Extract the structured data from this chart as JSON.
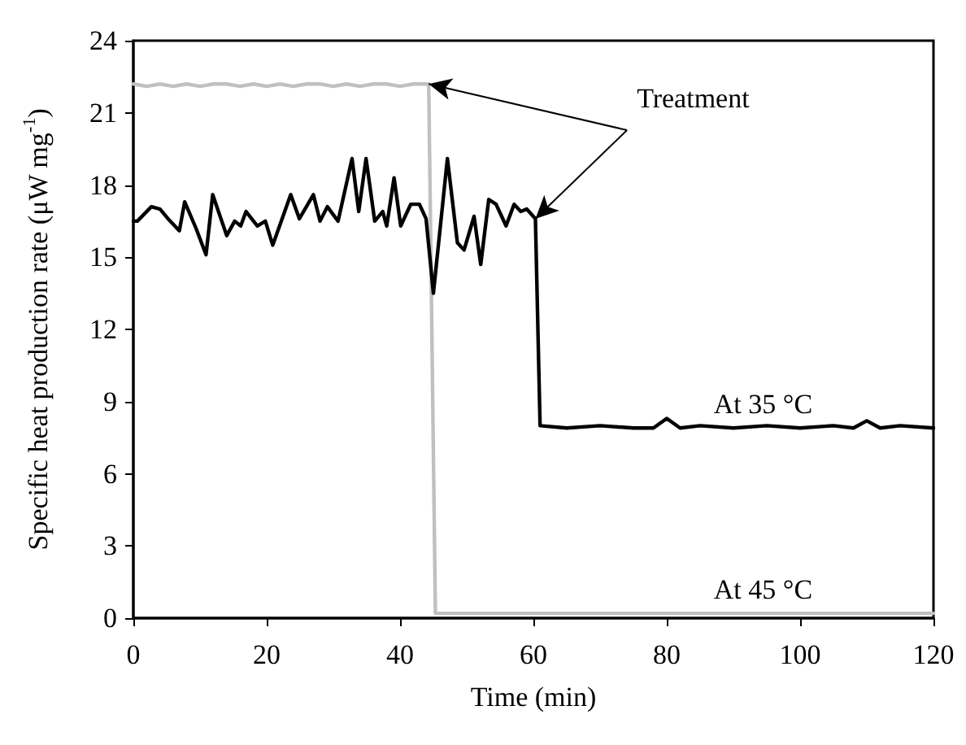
{
  "chart_data": {
    "type": "line",
    "xlabel": "Time (min)",
    "ylabel": "Specific heat production rate (μW mg$^{-1}$)",
    "xlim": [
      0,
      120
    ],
    "xticks": [
      0,
      20,
      40,
      60,
      80,
      100,
      120
    ],
    "ylim": [
      0,
      24
    ],
    "yticks": [
      0,
      3,
      6,
      9,
      12,
      15,
      18,
      21,
      24
    ],
    "grid": false,
    "marker": "none",
    "line_style": "solid",
    "series": [
      {
        "name": "At 45 °C",
        "color": "#c0c0c0",
        "x": [
          0,
          2,
          4,
          6,
          8,
          10,
          12,
          14,
          16,
          18,
          20,
          22,
          24,
          26,
          28,
          30,
          32,
          34,
          36,
          38,
          40,
          42,
          44.3,
          45.3,
          50,
          60,
          80,
          100,
          120
        ],
        "values": [
          22.2,
          22.1,
          22.2,
          22.1,
          22.2,
          22.1,
          22.2,
          22.2,
          22.1,
          22.2,
          22.1,
          22.2,
          22.1,
          22.2,
          22.2,
          22.1,
          22.2,
          22.1,
          22.2,
          22.2,
          22.1,
          22.2,
          22.2,
          0.2,
          0.2,
          0.2,
          0.2,
          0.2,
          0.2
        ]
      },
      {
        "name": "At 35 °C",
        "color": "#000000",
        "x": [
          0,
          0.6,
          2.7,
          4,
          5.2,
          6.9,
          7.7,
          9.4,
          10.9,
          11.9,
          14,
          15.2,
          16.1,
          16.9,
          18.6,
          19.8,
          20.9,
          23.6,
          24.9,
          27,
          28,
          29.1,
          30.7,
          32.8,
          33.8,
          34.9,
          36.2,
          37.4,
          38,
          39.1,
          40.1,
          41.6,
          42.9,
          43.9,
          45,
          47.1,
          48.6,
          49.6,
          51.1,
          52.1,
          53.3,
          54.4,
          55.9,
          57.1,
          58.1,
          59,
          60.3,
          61,
          65,
          70,
          75,
          78,
          80,
          82,
          85,
          90,
          95,
          100,
          105,
          108,
          110,
          112,
          115,
          120
        ],
        "values": [
          16.5,
          16.5,
          17.1,
          17,
          16.6,
          16.1,
          17.3,
          16.2,
          15.1,
          17.6,
          15.9,
          16.5,
          16.3,
          16.9,
          16.3,
          16.5,
          15.5,
          17.6,
          16.6,
          17.6,
          16.5,
          17.1,
          16.5,
          19.1,
          16.9,
          19.1,
          16.5,
          16.9,
          16.3,
          18.3,
          16.3,
          17.2,
          17.2,
          16.6,
          13.5,
          19.1,
          15.6,
          15.3,
          16.7,
          14.7,
          17.4,
          17.2,
          16.3,
          17.2,
          16.9,
          17,
          16.6,
          8,
          7.9,
          8,
          7.9,
          7.9,
          8.3,
          7.9,
          8,
          7.9,
          8,
          7.9,
          8,
          7.9,
          8.2,
          7.9,
          8,
          7.9
        ]
      }
    ],
    "annotations": [
      {
        "text": "Treatment",
        "x": 44.3,
        "y": 22.2
      }
    ]
  }
}
